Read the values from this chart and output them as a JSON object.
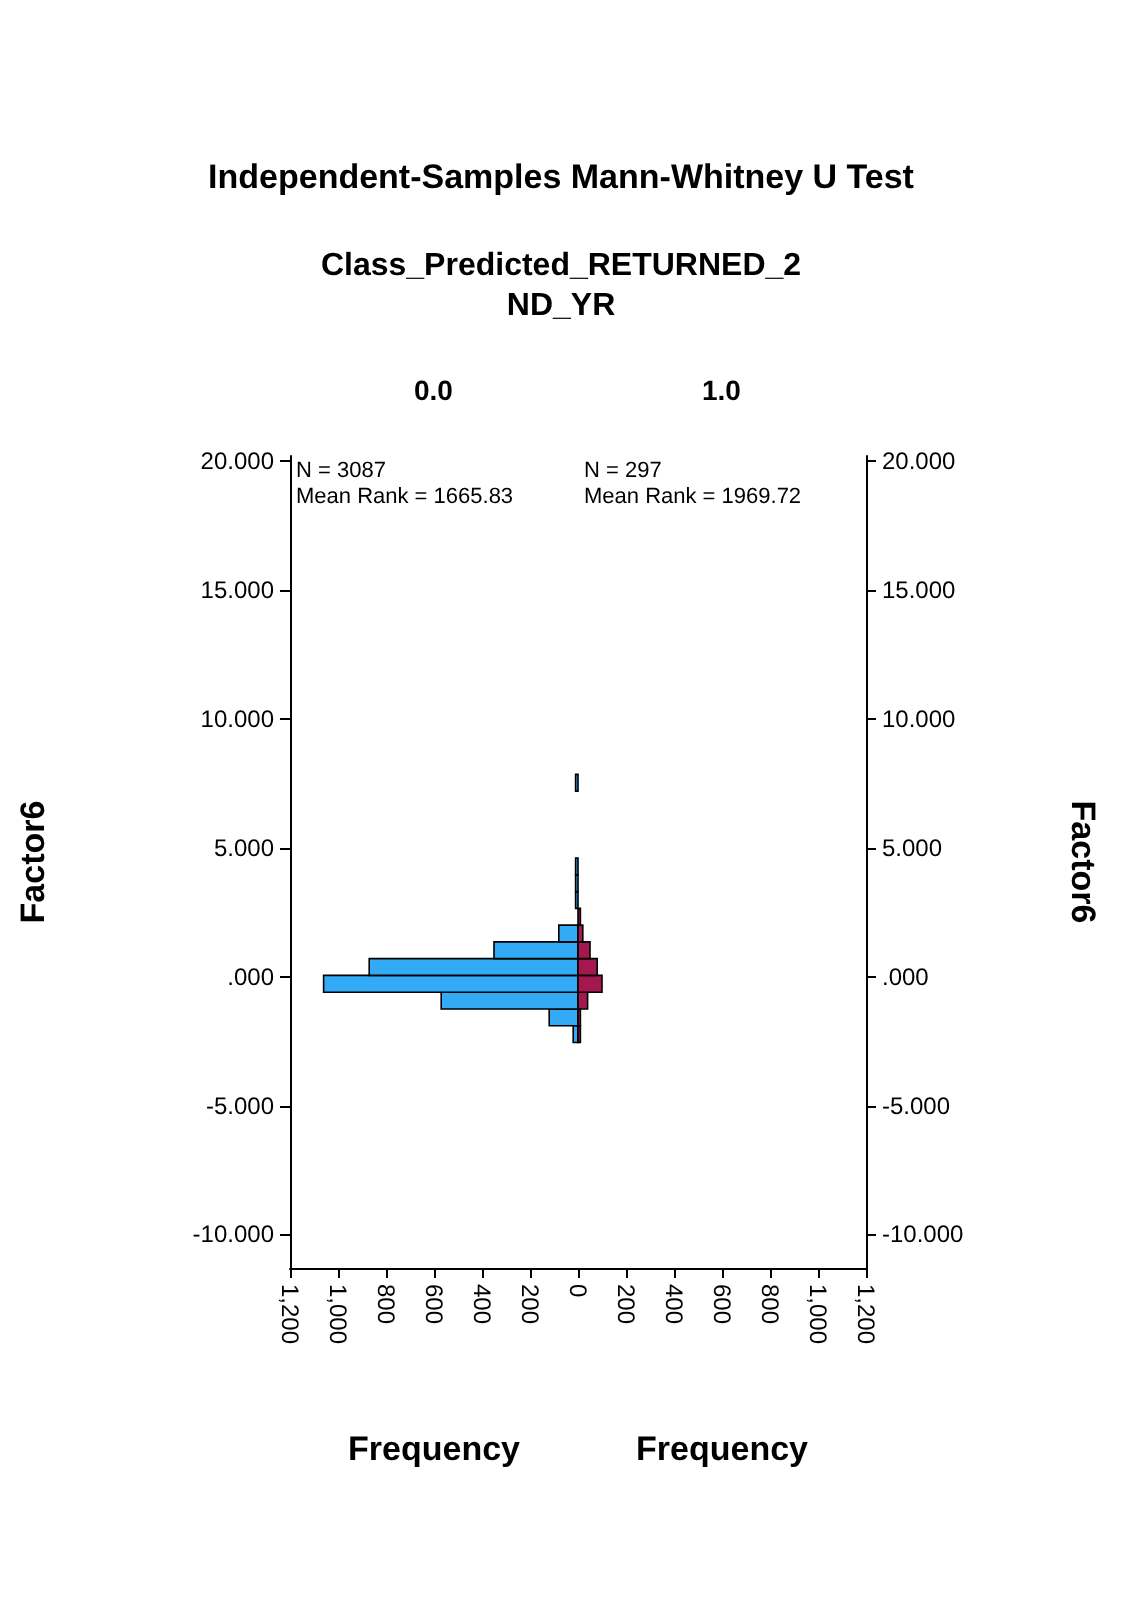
{
  "chart_data": [
    {
      "type": "histogram",
      "orientation": "horizontal",
      "title": "Independent-Samples Mann-Whitney U Test",
      "subtitle": "Class_Predicted_RETURNED_2ND_YR",
      "annotations": [
        "0.0",
        "N = 3087",
        "Mean Rank = 1665.83"
      ],
      "xlabel": "Frequency",
      "ylabel": "Factor6",
      "color": "#33aaf5",
      "bins": [
        -2.55,
        -1.9,
        -1.25,
        -0.6,
        0.05,
        0.7,
        1.35,
        2.0,
        2.65,
        3.3,
        3.95,
        4.6,
        5.25,
        5.9,
        6.55,
        7.2,
        7.85
      ],
      "values": [
        20,
        120,
        570,
        1060,
        870,
        350,
        80,
        null,
        10,
        10,
        10,
        0,
        0,
        0,
        0,
        10
      ],
      "xlim": [
        1200,
        0
      ],
      "xticks": [
        {
          "value": 1200,
          "label": "1,200"
        },
        {
          "value": 1000,
          "label": "1,000"
        },
        800,
        600,
        400,
        200,
        0
      ],
      "ylim": [
        -11.3,
        20.2
      ],
      "yticks": [
        {
          "value": 20,
          "label": "20.000"
        },
        {
          "value": 15,
          "label": "15.000"
        },
        {
          "value": 10,
          "label": "10.000"
        },
        {
          "value": 5,
          "label": "5.000"
        },
        {
          "value": 0,
          "label": ".000"
        },
        {
          "value": -5,
          "label": "-5.000"
        },
        {
          "value": -10,
          "label": "-10.000"
        }
      ]
    },
    {
      "type": "histogram",
      "orientation": "horizontal",
      "annotations": [
        "1.0",
        "N = 297",
        "Mean Rank = 1969.72"
      ],
      "xlabel": "Frequency",
      "ylabel": "Factor6",
      "color": "#a3184f",
      "bins": [
        -2.55,
        -1.9,
        -1.25,
        -0.6,
        0.05,
        0.7,
        1.35,
        2.0,
        2.65
      ],
      "values": [
        10,
        10,
        40,
        100,
        80,
        50,
        20,
        10
      ],
      "xlim": [
        0,
        1200
      ],
      "xticks": [
        {
          "value": 0,
          "label": null
        },
        200,
        400,
        600,
        800,
        {
          "value": 1000,
          "label": "1,000"
        },
        {
          "value": 1200,
          "label": "1,200"
        }
      ],
      "ylim": [
        -11.3,
        20.2
      ],
      "yticks": [
        {
          "value": 20,
          "label": "20.000"
        },
        {
          "value": 15,
          "label": "15.000"
        },
        {
          "value": 10,
          "label": "10.000"
        },
        {
          "value": 5,
          "label": "5.000"
        },
        {
          "value": 0,
          "label": ".000"
        },
        {
          "value": -5,
          "label": "-5.000"
        },
        {
          "value": -10,
          "label": "-10.000"
        }
      ]
    }
  ]
}
